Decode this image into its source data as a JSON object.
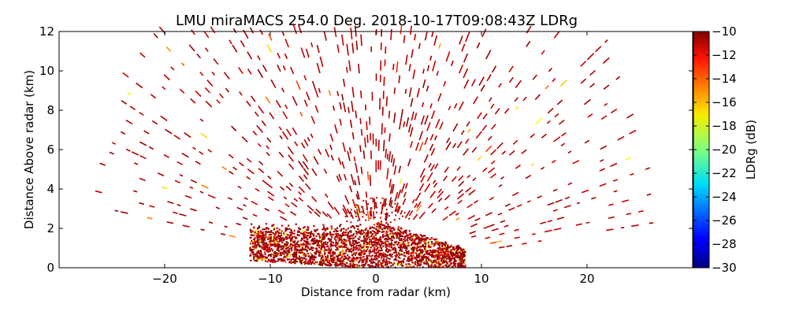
{
  "chart_data": {
    "type": "heatmap",
    "title": "LMU miraMACS 254.0 Deg. 2018-10-17T09:08:43Z  LDRg",
    "xlabel": "Distance from radar (km)",
    "ylabel": "Distance Above radar  (km)",
    "xlim": [
      -25,
      25
    ],
    "ylim": [
      0,
      12
    ],
    "x_ticks": [
      "−20",
      "−10",
      "0",
      "10",
      "20"
    ],
    "y_ticks": [
      "0",
      "2",
      "4",
      "6",
      "8",
      "10",
      "12"
    ],
    "colorbar": {
      "label": "LDRg (dB)",
      "range": [
        -30,
        -10
      ],
      "ticks": [
        "−10",
        "−12",
        "−14",
        "−16",
        "−18",
        "−20",
        "−22",
        "−24",
        "−26",
        "−28",
        "−30"
      ],
      "colormap": "jet"
    },
    "scan": {
      "type": "RHI",
      "azimuth_deg": 254.0,
      "timestamp": "2018-10-17T09:08:43Z",
      "dense_layer_top_km": 2.3,
      "dense_layer_x_range_km": [
        -10,
        7
      ],
      "max_range_km": 22,
      "typical_value_db": -11
    }
  }
}
